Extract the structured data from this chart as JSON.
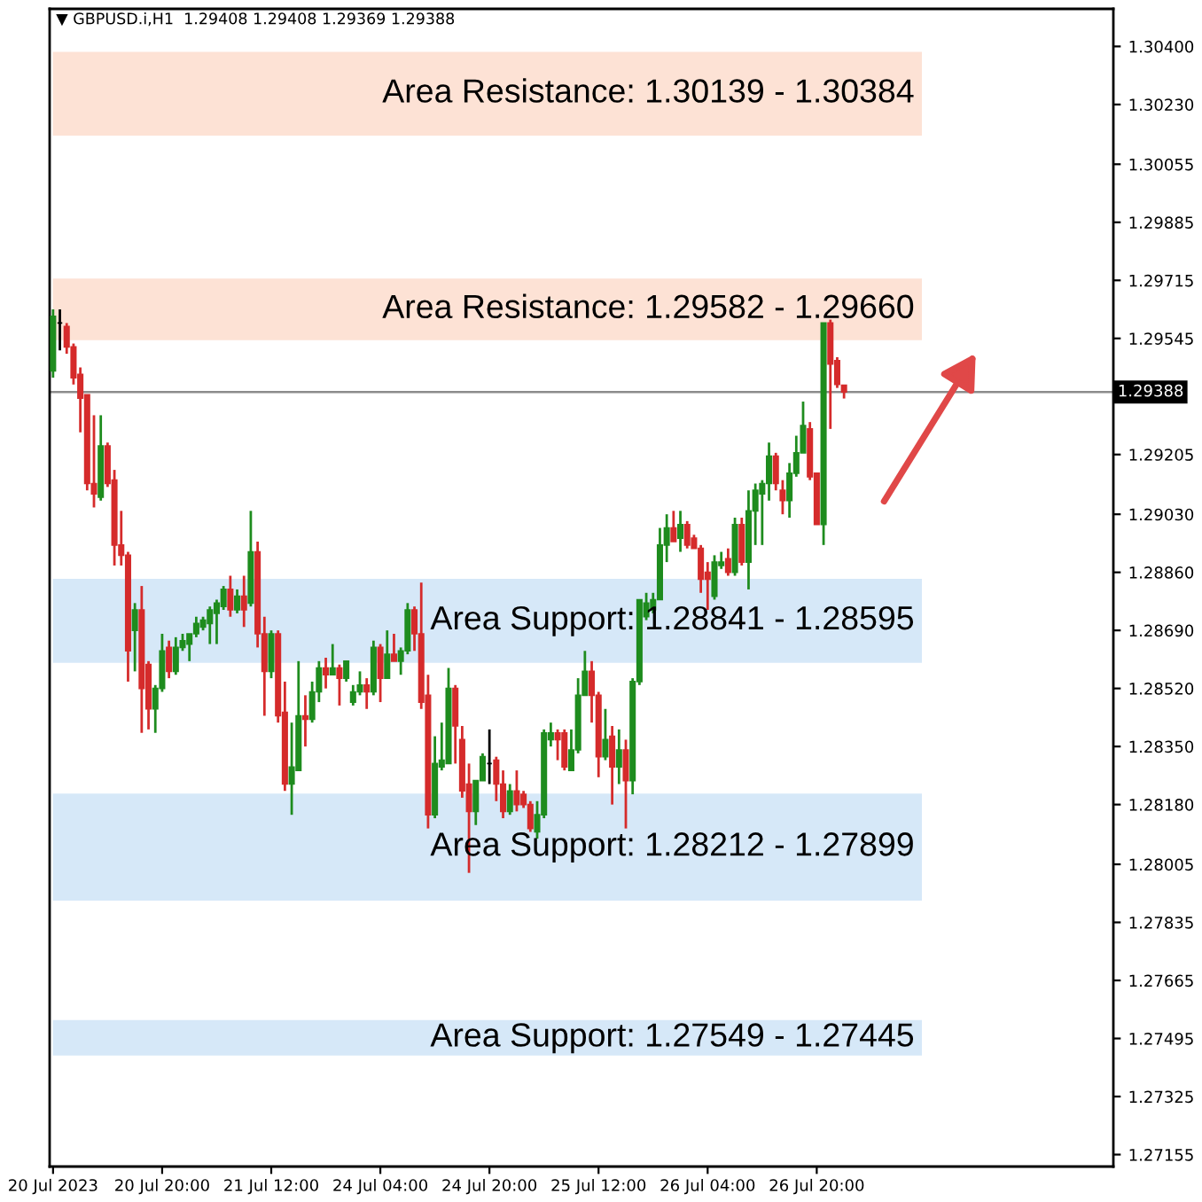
{
  "chart_data": {
    "type": "candlestick",
    "title": "▼ GBPUSD.i,H1  1.29408 1.29408 1.29369 1.29388",
    "categories": [
      "20 Jul 2023",
      null,
      null,
      null,
      null,
      null,
      null,
      null,
      null,
      null,
      null,
      null,
      null,
      null,
      null,
      null,
      "20 Jul 20:00",
      null,
      null,
      null,
      null,
      null,
      null,
      null,
      null,
      null,
      null,
      null,
      null,
      null,
      null,
      null,
      "21 Jul 12:00",
      null,
      null,
      null,
      null,
      null,
      null,
      null,
      null,
      null,
      null,
      null,
      null,
      null,
      null,
      null,
      "24 Jul 04:00",
      null,
      null,
      null,
      null,
      null,
      null,
      null,
      null,
      null,
      null,
      null,
      null,
      null,
      null,
      null,
      "24 Jul 20:00",
      null,
      null,
      null,
      null,
      null,
      null,
      null,
      null,
      null,
      null,
      null,
      null,
      null,
      null,
      null,
      "25 Jul 12:00",
      null,
      null,
      null,
      null,
      null,
      null,
      null,
      null,
      null,
      null,
      null,
      null,
      null,
      null,
      null,
      "26 Jul 04:00",
      null,
      null,
      null,
      null,
      null,
      null,
      null,
      null,
      null,
      null,
      null,
      null,
      null,
      null,
      null,
      "26 Jul 20:00",
      null,
      null,
      null,
      null,
      null,
      null,
      null,
      null,
      null,
      null,
      null,
      null,
      null,
      null,
      null,
      null,
      null,
      null,
      null,
      null,
      null,
      null,
      null,
      null,
      null,
      null,
      null,
      null,
      null,
      null,
      null,
      null,
      null,
      null,
      null,
      null,
      null,
      null,
      null,
      null,
      null,
      null,
      null
    ],
    "ohlc": [
      [
        1.2945,
        1.2963,
        1.2943,
        1.2961
      ],
      [
        1.2959,
        1.2963,
        1.2951,
        1.2959
      ],
      [
        1.2958,
        1.2959,
        1.295,
        1.2952
      ],
      [
        1.2952,
        1.2953,
        1.2941,
        1.2943
      ],
      [
        1.2944,
        1.2946,
        1.2927,
        1.2937
      ],
      [
        1.2938,
        1.2938,
        1.291,
        1.2912
      ],
      [
        1.2912,
        1.2932,
        1.2905,
        1.2909
      ],
      [
        1.2908,
        1.2932,
        1.2907,
        1.2923
      ],
      [
        1.2923,
        1.2924,
        1.2911,
        1.2912
      ],
      [
        1.2913,
        1.2916,
        1.2888,
        1.2894
      ],
      [
        1.2894,
        1.2904,
        1.2888,
        1.2891
      ],
      [
        1.2891,
        1.2892,
        1.2854,
        1.2863
      ],
      [
        1.2869,
        1.2877,
        1.2857,
        1.2875
      ],
      [
        1.2875,
        1.2882,
        1.2839,
        1.2852
      ],
      [
        1.2859,
        1.286,
        1.284,
        1.2846
      ],
      [
        1.2846,
        1.2853,
        1.2839,
        1.2852
      ],
      [
        1.2852,
        1.2868,
        1.2851,
        1.2863
      ],
      [
        1.2864,
        1.2866,
        1.2855,
        1.2857
      ],
      [
        1.2857,
        1.2867,
        1.2856,
        1.2864
      ],
      [
        1.2864,
        1.2868,
        1.2863,
        1.2866
      ],
      [
        1.2865,
        1.2868,
        1.286,
        1.2868
      ],
      [
        1.2868,
        1.2873,
        1.2867,
        1.2871
      ],
      [
        1.287,
        1.2873,
        1.2869,
        1.2872
      ],
      [
        1.2871,
        1.2876,
        1.2865,
        1.2875
      ],
      [
        1.2874,
        1.2878,
        1.2865,
        1.2877
      ],
      [
        1.2876,
        1.2882,
        1.2875,
        1.2881
      ],
      [
        1.2881,
        1.2885,
        1.2873,
        1.2875
      ],
      [
        1.2875,
        1.2881,
        1.2874,
        1.2879
      ],
      [
        1.2879,
        1.2885,
        1.287,
        1.2875
      ],
      [
        1.2877,
        1.2904,
        1.2876,
        1.2892
      ],
      [
        1.2892,
        1.2895,
        1.2864,
        1.2868
      ],
      [
        1.2868,
        1.2873,
        1.2844,
        1.2857
      ],
      [
        1.2857,
        1.2869,
        1.2855,
        1.2868
      ],
      [
        1.2868,
        1.2869,
        1.2842,
        1.2844
      ],
      [
        1.2845,
        1.2854,
        1.2822,
        1.2824
      ],
      [
        1.2824,
        1.2842,
        1.2815,
        1.2829
      ],
      [
        1.2828,
        1.286,
        1.2828,
        1.2844
      ],
      [
        1.2844,
        1.285,
        1.2835,
        1.2843
      ],
      [
        1.2843,
        1.2854,
        1.2842,
        1.2851
      ],
      [
        1.2851,
        1.286,
        1.2848,
        1.2858
      ],
      [
        1.2858,
        1.2861,
        1.2852,
        1.2856
      ],
      [
        1.2856,
        1.2865,
        1.2856,
        1.2858
      ],
      [
        1.2858,
        1.2859,
        1.2847,
        1.2855
      ],
      [
        1.2855,
        1.286,
        1.2854,
        1.286
      ],
      [
        1.2848,
        1.2853,
        1.2847,
        1.2851
      ],
      [
        1.2851,
        1.2857,
        1.285,
        1.2853
      ],
      [
        1.2853,
        1.2855,
        1.2846,
        1.2851
      ],
      [
        1.2851,
        1.2866,
        1.285,
        1.2864
      ],
      [
        1.2864,
        1.2865,
        1.2848,
        1.2855
      ],
      [
        1.2855,
        1.2869,
        1.2855,
        1.2862
      ],
      [
        1.2862,
        1.2868,
        1.286,
        1.286
      ],
      [
        1.286,
        1.2864,
        1.2856,
        1.2863
      ],
      [
        1.2863,
        1.2877,
        1.2862,
        1.2875
      ],
      [
        1.2875,
        1.2876,
        1.2863,
        1.2868
      ],
      [
        1.2868,
        1.2883,
        1.2846,
        1.2848
      ],
      [
        1.285,
        1.2856,
        1.2811,
        1.2815
      ],
      [
        1.2815,
        1.2838,
        1.2814,
        1.283
      ],
      [
        1.2829,
        1.2842,
        1.2828,
        1.2831
      ],
      [
        1.283,
        1.2858,
        1.283,
        1.2852
      ],
      [
        1.2852,
        1.2853,
        1.283,
        1.2841
      ],
      [
        1.2837,
        1.2841,
        1.282,
        1.2822
      ],
      [
        1.2824,
        1.283,
        1.2798,
        1.2816
      ],
      [
        1.2816,
        1.2825,
        1.2812,
        1.2825
      ],
      [
        1.2825,
        1.2833,
        1.2825,
        1.2832
      ],
      [
        1.283,
        1.284,
        1.2824,
        1.283
      ],
      [
        1.2831,
        1.2832,
        1.2819,
        1.2824
      ],
      [
        1.2824,
        1.2828,
        1.2814,
        1.2816
      ],
      [
        1.2816,
        1.2824,
        1.2815,
        1.2822
      ],
      [
        1.2822,
        1.2828,
        1.2816,
        1.2818
      ],
      [
        1.2821,
        1.2822,
        1.2817,
        1.2818
      ],
      [
        1.2818,
        1.2819,
        1.281,
        1.2811
      ],
      [
        1.281,
        1.2819,
        1.2808,
        1.2815
      ],
      [
        1.2815,
        1.284,
        1.2814,
        1.2839
      ],
      [
        1.2837,
        1.2842,
        1.2835,
        1.2839
      ],
      [
        1.2839,
        1.284,
        1.2831,
        1.2837
      ],
      [
        1.2839,
        1.284,
        1.2828,
        1.2829
      ],
      [
        1.2828,
        1.284,
        1.2828,
        1.2834
      ],
      [
        1.2834,
        1.2855,
        1.2833,
        1.285
      ],
      [
        1.285,
        1.2863,
        1.285,
        1.2857
      ],
      [
        1.2857,
        1.286,
        1.2842,
        1.285
      ],
      [
        1.285,
        1.2851,
        1.2826,
        1.2832
      ],
      [
        1.2832,
        1.2846,
        1.2831,
        1.2837
      ],
      [
        1.2838,
        1.2841,
        1.2818,
        1.2829
      ],
      [
        1.2829,
        1.284,
        1.2824,
        1.2834
      ],
      [
        1.2834,
        1.2837,
        1.2811,
        1.2825
      ],
      [
        1.2825,
        1.2855,
        1.2821,
        1.2854
      ],
      [
        1.2854,
        1.2878,
        1.2853,
        1.2878
      ],
      [
        1.2873,
        1.288,
        1.2872,
        1.2877
      ],
      [
        1.2875,
        1.288,
        1.2874,
        1.2878
      ],
      [
        1.2878,
        1.2899,
        1.2878,
        1.2894
      ],
      [
        1.2894,
        1.2903,
        1.2889,
        1.2899
      ],
      [
        1.2899,
        1.2904,
        1.2895,
        1.2895
      ],
      [
        1.2896,
        1.2904,
        1.2892,
        1.29
      ],
      [
        1.29,
        1.2901,
        1.2893,
        1.2894
      ],
      [
        1.2896,
        1.2897,
        1.2893,
        1.2893
      ],
      [
        1.2893,
        1.2894,
        1.288,
        1.2884
      ],
      [
        1.2886,
        1.2889,
        1.2875,
        1.2884
      ],
      [
        1.2879,
        1.2891,
        1.2878,
        1.2889
      ],
      [
        1.2888,
        1.2892,
        1.2887,
        1.2889
      ],
      [
        1.289,
        1.2893,
        1.2885,
        1.2886
      ],
      [
        1.2886,
        1.2902,
        1.2885,
        1.29
      ],
      [
        1.29,
        1.2902,
        1.2888,
        1.2889
      ],
      [
        1.2889,
        1.291,
        1.2881,
        1.2904
      ],
      [
        1.2904,
        1.2912,
        1.2894,
        1.291
      ],
      [
        1.2909,
        1.2913,
        1.2894,
        1.2912
      ],
      [
        1.2912,
        1.2924,
        1.2907,
        1.292
      ],
      [
        1.292,
        1.2921,
        1.291,
        1.2912
      ],
      [
        1.291,
        1.2913,
        1.2903,
        1.2907
      ],
      [
        1.2907,
        1.2918,
        1.2902,
        1.2915
      ],
      [
        1.2915,
        1.2926,
        1.2914,
        1.2921
      ],
      [
        1.2921,
        1.2936,
        1.2921,
        1.2929
      ],
      [
        1.2928,
        1.293,
        1.2913,
        1.2914
      ],
      [
        1.2915,
        1.2915,
        1.29,
        1.29
      ],
      [
        1.29,
        1.2959,
        1.2894,
        1.2959
      ],
      [
        1.2959,
        1.296,
        1.2928,
        1.2947
      ],
      [
        1.2948,
        1.2949,
        1.294,
        1.2941
      ],
      [
        1.29408,
        1.29408,
        1.29369,
        1.29388
      ],
      null,
      null,
      null,
      null,
      null,
      null,
      null,
      null,
      null,
      null,
      null,
      null,
      null,
      null,
      null,
      null,
      null,
      null,
      null,
      null,
      null,
      null,
      null,
      null,
      null,
      null,
      null,
      null,
      null,
      null,
      null,
      null,
      null,
      null,
      null,
      null,
      null,
      null,
      null
    ],
    "colors": [
      "#1e8c1e",
      "#000000",
      "#d52b2b",
      "#d52b2b",
      "#d52b2b",
      "#d52b2b",
      "#d52b2b",
      "#1e8c1e",
      "#d52b2b",
      "#d52b2b",
      "#d52b2b",
      "#d52b2b",
      "#1e8c1e",
      "#d52b2b",
      "#d52b2b",
      "#1e8c1e",
      "#1e8c1e",
      "#d52b2b",
      "#1e8c1e",
      "#1e8c1e",
      "#1e8c1e",
      "#1e8c1e",
      "#1e8c1e",
      "#1e8c1e",
      "#1e8c1e",
      "#1e8c1e",
      "#d52b2b",
      "#1e8c1e",
      "#d52b2b",
      "#1e8c1e",
      "#d52b2b",
      "#d52b2b",
      "#1e8c1e",
      "#d52b2b",
      "#d52b2b",
      "#1e8c1e",
      "#1e8c1e",
      "#d52b2b",
      "#1e8c1e",
      "#1e8c1e",
      "#d52b2b",
      "#1e8c1e",
      "#d52b2b",
      "#1e8c1e",
      "#1e8c1e",
      "#1e8c1e",
      "#d52b2b",
      "#1e8c1e",
      "#d52b2b",
      "#1e8c1e",
      "#d52b2b",
      "#1e8c1e",
      "#1e8c1e",
      "#d52b2b",
      "#d52b2b",
      "#d52b2b",
      "#1e8c1e",
      "#1e8c1e",
      "#1e8c1e",
      "#d52b2b",
      "#d52b2b",
      "#d52b2b",
      "#1e8c1e",
      "#1e8c1e",
      "#000000",
      "#d52b2b",
      "#d52b2b",
      "#1e8c1e",
      "#d52b2b",
      "#d52b2b",
      "#d52b2b",
      "#1e8c1e",
      "#1e8c1e",
      "#1e8c1e",
      "#d52b2b",
      "#d52b2b",
      "#1e8c1e",
      "#1e8c1e",
      "#1e8c1e",
      "#d52b2b",
      "#d52b2b",
      "#1e8c1e",
      "#d52b2b",
      "#1e8c1e",
      "#d52b2b",
      "#1e8c1e",
      "#1e8c1e",
      "#1e8c1e",
      "#1e8c1e",
      "#1e8c1e",
      "#1e8c1e",
      "#d52b2b",
      "#1e8c1e",
      "#d52b2b",
      "#d52b2b",
      "#d52b2b",
      "#d52b2b",
      "#1e8c1e",
      "#1e8c1e",
      "#d52b2b",
      "#1e8c1e",
      "#d52b2b",
      "#1e8c1e",
      "#1e8c1e",
      "#1e8c1e",
      "#1e8c1e",
      "#d52b2b",
      "#d52b2b",
      "#1e8c1e",
      "#1e8c1e",
      "#1e8c1e",
      "#d52b2b",
      "#d52b2b",
      "#1e8c1e",
      "#d52b2b",
      "#d52b2b",
      "#d52b2b",
      null,
      null,
      null,
      null,
      null,
      null,
      null,
      null,
      null,
      null,
      null,
      null,
      null,
      null,
      null,
      null,
      null,
      null,
      null,
      null,
      null,
      null,
      null,
      null,
      null,
      null,
      null,
      null,
      null,
      null,
      null,
      null,
      null,
      null,
      null,
      null,
      null,
      null,
      null
    ],
    "ylim": [
      1.2712,
      1.3051
    ],
    "yticks": [
      {
        "value": 1.304,
        "label": "1.30400"
      },
      {
        "value": 1.3023,
        "label": "1.30230"
      },
      {
        "value": 1.30055,
        "label": "1.30055"
      },
      {
        "value": 1.29885,
        "label": "1.29885"
      },
      {
        "value": 1.29715,
        "label": "1.29715"
      },
      {
        "value": 1.29545,
        "label": "1.29545"
      },
      {
        "value": 1.29205,
        "label": "1.29205"
      },
      {
        "value": 1.2903,
        "label": "1.29030"
      },
      {
        "value": 1.2886,
        "label": "1.28860"
      },
      {
        "value": 1.2869,
        "label": "1.28690"
      },
      {
        "value": 1.2852,
        "label": "1.28520"
      },
      {
        "value": 1.2835,
        "label": "1.28350"
      },
      {
        "value": 1.2818,
        "label": "1.28180"
      },
      {
        "value": 1.28005,
        "label": "1.28005"
      },
      {
        "value": 1.27835,
        "label": "1.27835"
      },
      {
        "value": 1.27665,
        "label": "1.27665"
      },
      {
        "value": 1.27495,
        "label": "1.27495"
      },
      {
        "value": 1.27325,
        "label": "1.27325"
      },
      {
        "value": 1.27155,
        "label": "1.27155"
      }
    ],
    "bands": [
      {
        "axis": "y",
        "from": 1.30139,
        "to": 1.30384,
        "label": "Area Resistance: 1.30139 - 1.30384",
        "color": "#fde2d5"
      },
      {
        "axis": "y",
        "from": 1.2954,
        "to": 1.2972,
        "label": "Area Resistance: 1.29582 - 1.29660",
        "color": "#fde2d5"
      },
      {
        "axis": "y",
        "from": 1.28595,
        "to": 1.28841,
        "label": "Area Support: 1.28841 - 1.28595",
        "color": "#d6e8f8"
      },
      {
        "axis": "y",
        "from": 1.27899,
        "to": 1.28212,
        "label": "Area Support: 1.28212 - 1.27899",
        "color": "#d6e8f8"
      },
      {
        "axis": "y",
        "from": 1.27445,
        "to": 1.27549,
        "label": "Area Support: 1.27549 - 1.27445",
        "color": "#d6e8f8"
      }
    ],
    "ref_lines": [
      {
        "axis": "y",
        "value": 1.29388,
        "label": "1.29388",
        "color": "#8c8c8c",
        "line_style": "solid"
      }
    ]
  }
}
